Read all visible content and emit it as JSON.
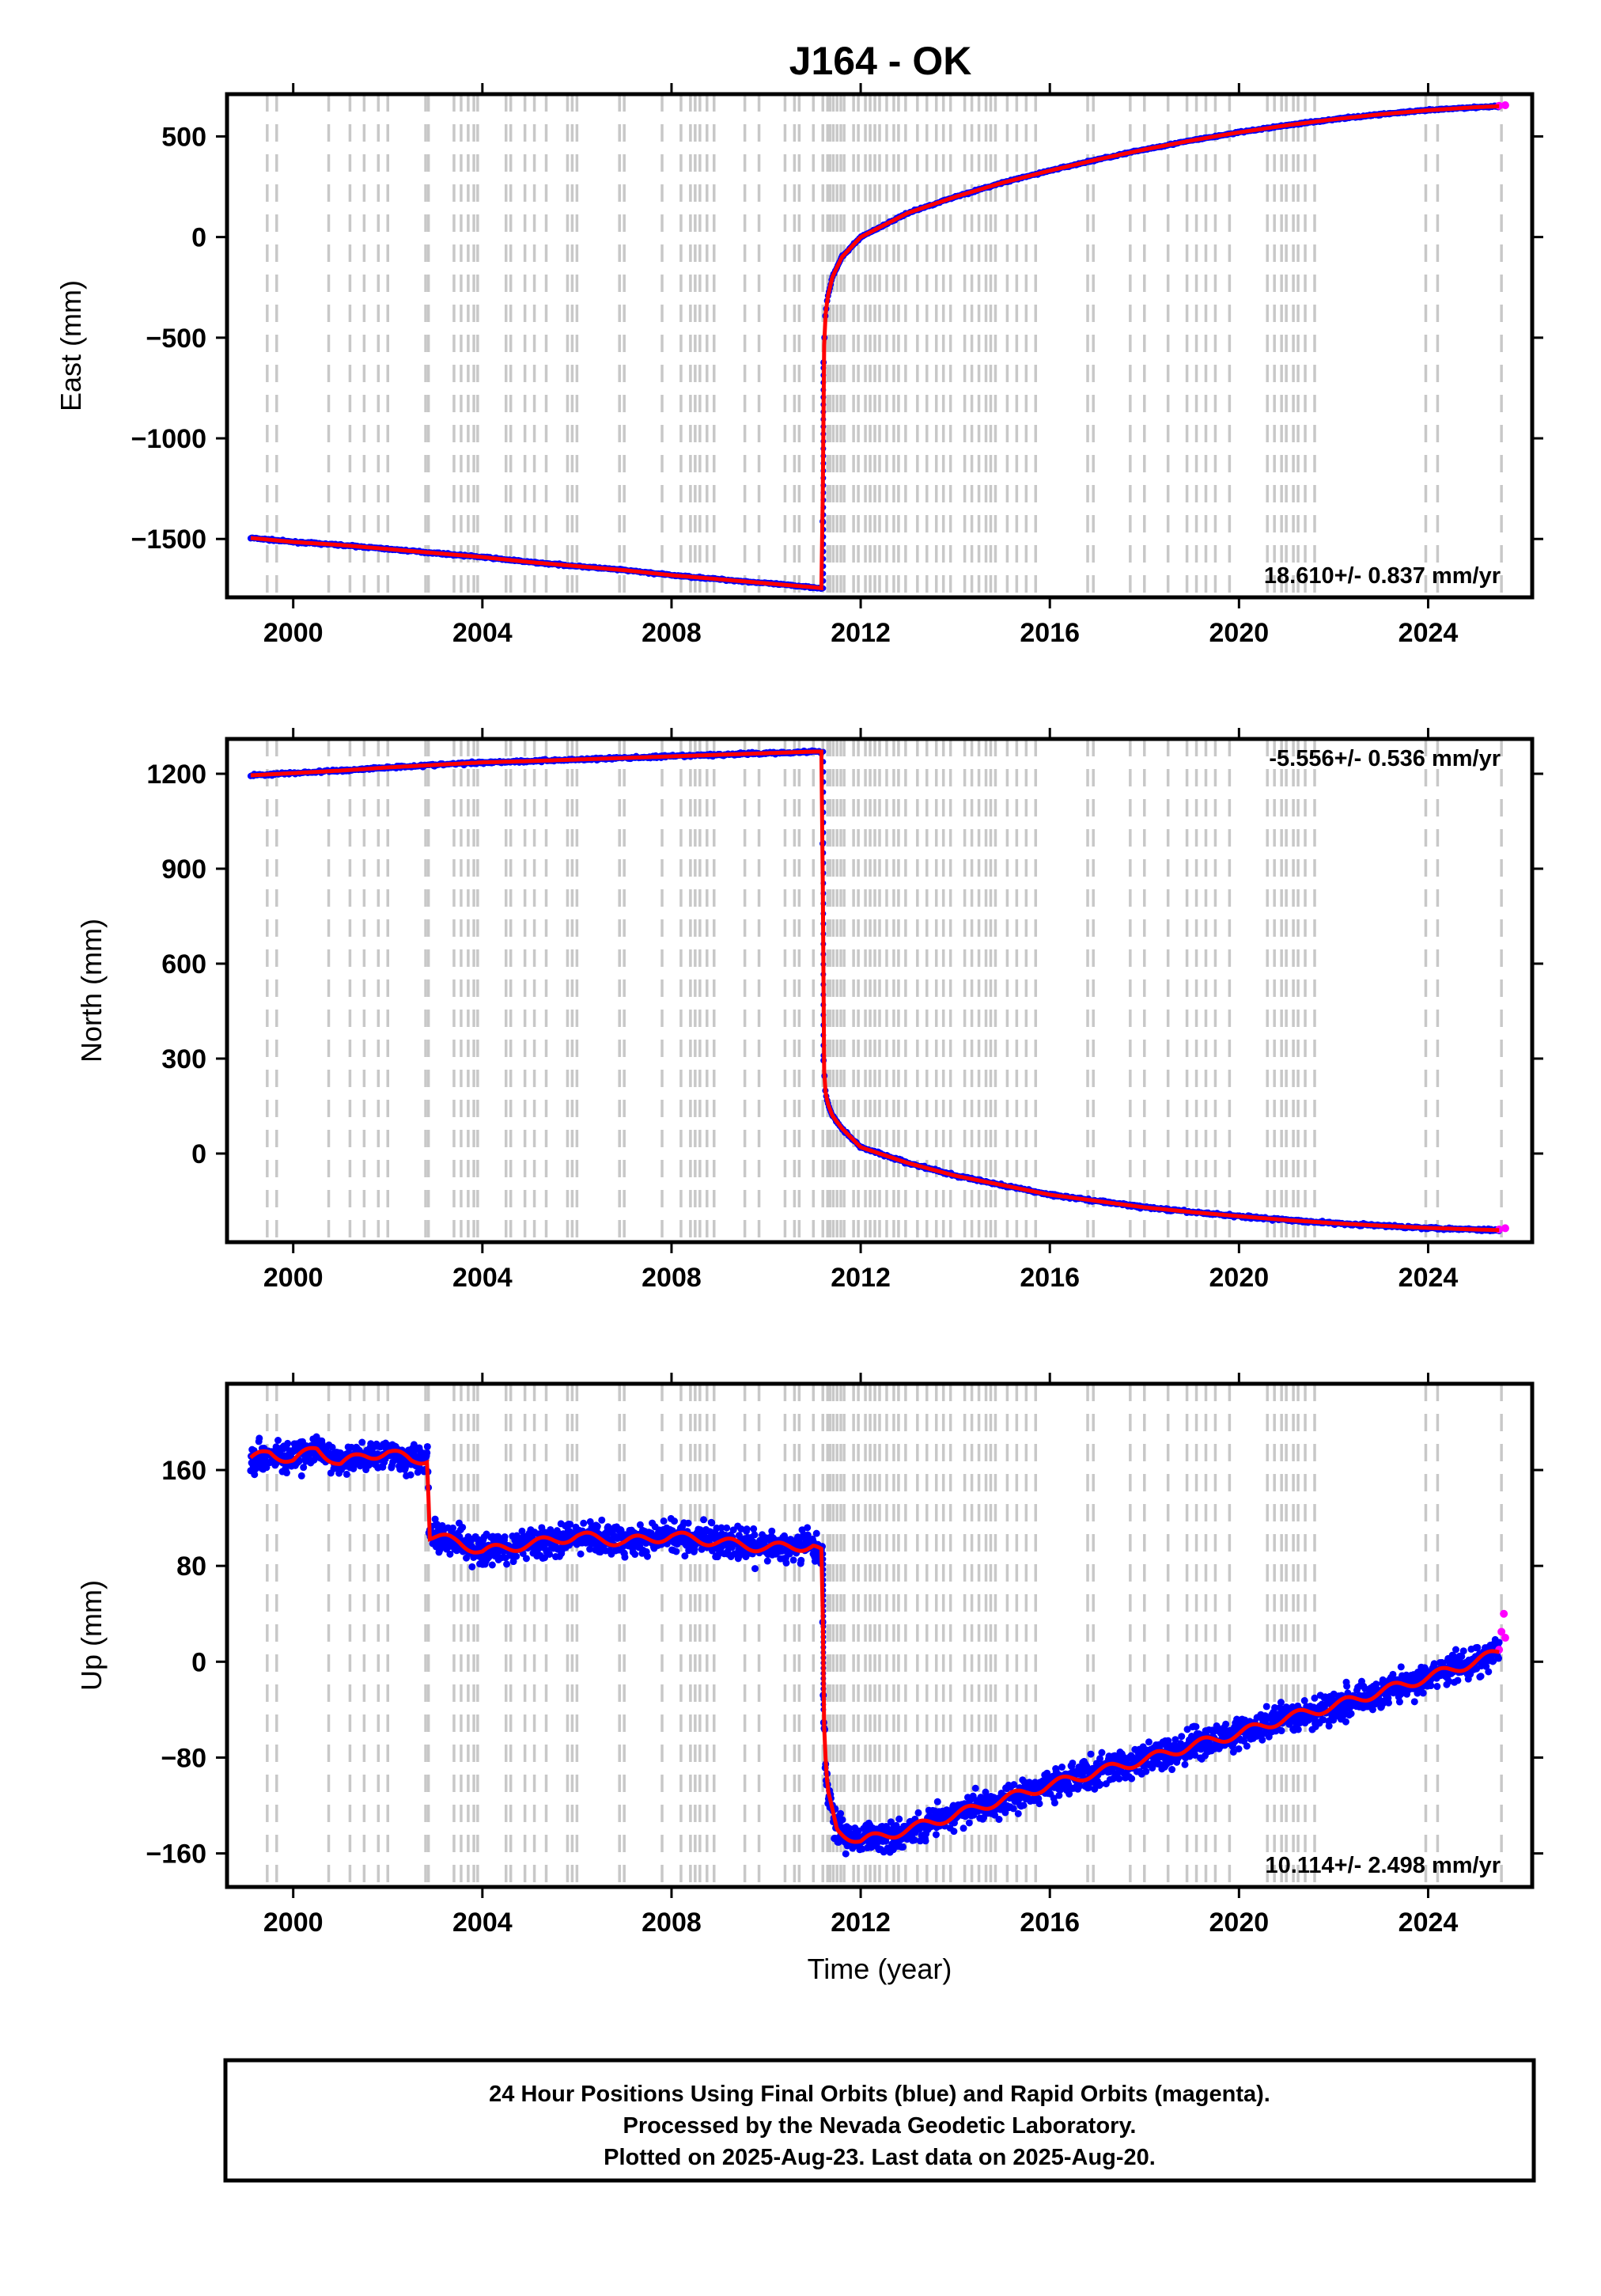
{
  "title": "J164 - OK",
  "colors": {
    "final_orbits": "#0000ff",
    "rapid_orbits": "#ff00ff",
    "model": "#ff0000",
    "steps": "#c8c8c8",
    "frame": "#000000"
  },
  "footer": {
    "line1": "24 Hour Positions Using Final Orbits (blue) and Rapid Orbits (magenta).",
    "line2": "Processed by the Nevada Geodetic Laboratory.",
    "line3": "Plotted on 2025-Aug-23. Last data on 2025-Aug-20."
  },
  "chart_data": [
    {
      "type": "scatter",
      "ylabel": "East (mm)",
      "xlabel": "",
      "xlim": [
        1998.6,
        2026.2
      ],
      "ylim": [
        -1790,
        710
      ],
      "xticks": [
        2000,
        2004,
        2008,
        2012,
        2016,
        2020,
        2024
      ],
      "yticks": [
        500,
        0,
        -500,
        -1000,
        -1500
      ],
      "ytick_labels": [
        "500",
        "0",
        "−500",
        "−1000",
        "−1500"
      ],
      "rate_label": "18.610+/- 0.837 mm/yr",
      "rate_position": "bottom-right",
      "grid": false,
      "series": [
        {
          "name": "Final Orbits (blue)",
          "x": [
            1999.1,
            2000.0,
            2001.0,
            2002.0,
            2003.0,
            2004.0,
            2005.0,
            2006.0,
            2007.0,
            2008.0,
            2009.0,
            2010.0,
            2011.0,
            2011.19,
            2011.21,
            2011.25,
            2011.3,
            2011.4,
            2011.6,
            2011.8,
            2012.0,
            2012.5,
            2013.0,
            2014.0,
            2015.0,
            2016.0,
            2017.0,
            2018.0,
            2019.0,
            2020.0,
            2021.0,
            2022.0,
            2023.0,
            2024.0,
            2025.0,
            2025.5
          ],
          "y": [
            -1495,
            -1515,
            -1530,
            -1550,
            -1570,
            -1590,
            -1615,
            -1635,
            -1655,
            -1680,
            -1700,
            -1720,
            -1740,
            -1745,
            -650,
            -400,
            -300,
            -200,
            -100,
            -50,
            0,
            60,
            120,
            200,
            270,
            330,
            385,
            435,
            480,
            520,
            555,
            585,
            610,
            630,
            645,
            650
          ]
        },
        {
          "name": "Rapid Orbits (magenta)",
          "x": [
            2025.5,
            2025.63
          ],
          "y": [
            652,
            655
          ]
        }
      ],
      "step_epochs": [
        1999.45,
        1999.65,
        2000.75,
        2001.2,
        2001.5,
        2001.8,
        2002.0,
        2002.8,
        2002.86,
        2003.4,
        2003.55,
        2003.7,
        2003.82,
        2003.9,
        2004.5,
        2004.6,
        2004.9,
        2005.1,
        2005.35,
        2005.8,
        2005.9,
        2006.0,
        2006.9,
        2007.0,
        2007.8,
        2008.2,
        2008.4,
        2008.5,
        2008.6,
        2008.75,
        2008.9,
        2009.55,
        2009.85,
        2010.4,
        2010.6,
        2010.7,
        2011.0,
        2011.2,
        2011.3,
        2011.35,
        2011.42,
        2011.5,
        2011.58,
        2011.65,
        2011.85,
        2011.95,
        2012.1,
        2012.2,
        2012.3,
        2012.4,
        2012.55,
        2012.7,
        2012.8,
        2012.95,
        2013.2,
        2013.4,
        2013.6,
        2013.75,
        2013.9,
        2014.2,
        2014.35,
        2014.5,
        2014.65,
        2014.75,
        2014.85,
        2015.1,
        2015.3,
        2015.5,
        2015.7,
        2016.8,
        2016.92,
        2017.7,
        2018.0,
        2018.5,
        2018.9,
        2019.1,
        2019.3,
        2019.5,
        2019.8,
        2020.6,
        2020.75,
        2020.9,
        2021.0,
        2021.15,
        2021.25,
        2021.4,
        2021.6,
        2023.95,
        2024.2,
        2025.55
      ]
    },
    {
      "type": "scatter",
      "ylabel": "North (mm)",
      "xlabel": "",
      "xlim": [
        1998.6,
        2026.2
      ],
      "ylim": [
        -280,
        1310
      ],
      "xticks": [
        2000,
        2004,
        2008,
        2012,
        2016,
        2020,
        2024
      ],
      "yticks": [
        1200,
        900,
        600,
        300,
        0
      ],
      "ytick_labels": [
        "1200",
        "900",
        "600",
        "300",
        "0"
      ],
      "rate_label": "-5.556+/- 0.536 mm/yr",
      "rate_position": "top-right",
      "grid": false,
      "series": [
        {
          "name": "Final Orbits (blue)",
          "x": [
            1999.1,
            2000.0,
            2001.0,
            2002.0,
            2003.0,
            2004.0,
            2005.0,
            2006.0,
            2007.0,
            2008.0,
            2009.0,
            2010.0,
            2011.0,
            2011.19,
            2011.21,
            2011.25,
            2011.3,
            2011.4,
            2011.6,
            2011.8,
            2012.0,
            2012.5,
            2013.0,
            2014.0,
            2015.0,
            2016.0,
            2017.0,
            2018.0,
            2019.0,
            2020.0,
            2021.0,
            2022.0,
            2023.0,
            2024.0,
            2025.0,
            2025.5
          ],
          "y": [
            1195,
            1202,
            1210,
            1220,
            1228,
            1236,
            1240,
            1245,
            1250,
            1255,
            1260,
            1265,
            1270,
            1270,
            310,
            200,
            160,
            120,
            80,
            50,
            20,
            -5,
            -30,
            -70,
            -100,
            -130,
            -150,
            -170,
            -185,
            -198,
            -210,
            -220,
            -228,
            -235,
            -240,
            -242
          ]
        },
        {
          "name": "Rapid Orbits (magenta)",
          "x": [
            2025.5,
            2025.63
          ],
          "y": [
            -240,
            -236
          ]
        }
      ],
      "step_epochs": [
        1999.45,
        1999.65,
        2000.75,
        2001.2,
        2001.5,
        2001.8,
        2002.0,
        2002.8,
        2002.86,
        2003.4,
        2003.55,
        2003.7,
        2003.82,
        2003.9,
        2004.5,
        2004.6,
        2004.9,
        2005.1,
        2005.35,
        2005.8,
        2005.9,
        2006.0,
        2006.9,
        2007.0,
        2007.8,
        2008.2,
        2008.4,
        2008.5,
        2008.6,
        2008.75,
        2008.9,
        2009.55,
        2009.85,
        2010.4,
        2010.6,
        2010.7,
        2011.0,
        2011.2,
        2011.3,
        2011.35,
        2011.42,
        2011.5,
        2011.58,
        2011.65,
        2011.85,
        2011.95,
        2012.1,
        2012.2,
        2012.3,
        2012.4,
        2012.55,
        2012.7,
        2012.8,
        2012.95,
        2013.2,
        2013.4,
        2013.6,
        2013.75,
        2013.9,
        2014.2,
        2014.35,
        2014.5,
        2014.65,
        2014.75,
        2014.85,
        2015.1,
        2015.3,
        2015.5,
        2015.7,
        2016.8,
        2016.92,
        2017.7,
        2018.0,
        2018.5,
        2018.9,
        2019.1,
        2019.3,
        2019.5,
        2019.8,
        2020.6,
        2020.75,
        2020.9,
        2021.0,
        2021.15,
        2021.25,
        2021.4,
        2021.6,
        2023.95,
        2024.2,
        2025.55
      ]
    },
    {
      "type": "scatter",
      "ylabel": "Up (mm)",
      "xlabel": "Time (year)",
      "xlim": [
        1998.6,
        2026.2
      ],
      "ylim": [
        -188,
        232
      ],
      "xticks": [
        2000,
        2004,
        2008,
        2012,
        2016,
        2020,
        2024
      ],
      "yticks": [
        160,
        80,
        0,
        -80,
        -160
      ],
      "ytick_labels": [
        "160",
        "80",
        "0",
        "−80",
        "−160"
      ],
      "rate_label": "10.114+/- 2.498 mm/yr",
      "rate_position": "bottom-right",
      "grid": false,
      "series": [
        {
          "name": "Final Orbits (blue)",
          "x": [
            1999.1,
            1999.5,
            2000.0,
            2000.5,
            2001.0,
            2001.5,
            2002.0,
            2002.5,
            2002.85,
            2002.87,
            2003.5,
            2004.0,
            2005.0,
            2006.0,
            2007.0,
            2008.0,
            2009.0,
            2010.0,
            2011.0,
            2011.19,
            2011.21,
            2011.25,
            2011.3,
            2011.5,
            2012.0,
            2012.5,
            2013.0,
            2014.0,
            2015.0,
            2016.0,
            2017.0,
            2018.0,
            2019.0,
            2020.0,
            2021.0,
            2022.0,
            2023.0,
            2024.0,
            2025.0,
            2025.5
          ],
          "y": [
            168,
            175,
            168,
            178,
            165,
            172,
            175,
            168,
            170,
            105,
            100,
            92,
            98,
            105,
            100,
            105,
            100,
            95,
            97,
            90,
            -40,
            -80,
            -110,
            -140,
            -150,
            -145,
            -140,
            -128,
            -115,
            -103,
            -92,
            -82,
            -70,
            -60,
            -47,
            -37,
            -25,
            -13,
            0,
            8
          ]
        },
        {
          "name": "Rapid Orbits (magenta)",
          "x": [
            2025.5,
            2025.55,
            2025.6,
            2025.63
          ],
          "y": [
            10,
            25,
            40,
            20
          ]
        }
      ],
      "step_epochs": [
        1999.45,
        1999.65,
        2000.75,
        2001.2,
        2001.5,
        2001.8,
        2002.0,
        2002.8,
        2002.86,
        2003.4,
        2003.55,
        2003.7,
        2003.82,
        2003.9,
        2004.5,
        2004.6,
        2004.9,
        2005.1,
        2005.35,
        2005.8,
        2005.9,
        2006.0,
        2006.9,
        2007.0,
        2007.8,
        2008.2,
        2008.4,
        2008.5,
        2008.6,
        2008.75,
        2008.9,
        2009.55,
        2009.85,
        2010.4,
        2010.6,
        2010.7,
        2011.0,
        2011.2,
        2011.3,
        2011.35,
        2011.42,
        2011.5,
        2011.58,
        2011.65,
        2011.85,
        2011.95,
        2012.1,
        2012.2,
        2012.3,
        2012.4,
        2012.55,
        2012.7,
        2012.8,
        2012.95,
        2013.2,
        2013.4,
        2013.6,
        2013.75,
        2013.9,
        2014.2,
        2014.35,
        2014.5,
        2014.65,
        2014.75,
        2014.85,
        2015.1,
        2015.3,
        2015.5,
        2015.7,
        2016.8,
        2016.92,
        2017.7,
        2018.0,
        2018.5,
        2018.9,
        2019.1,
        2019.3,
        2019.5,
        2019.8,
        2020.6,
        2020.75,
        2020.9,
        2021.0,
        2021.15,
        2021.25,
        2021.4,
        2021.6,
        2023.95,
        2024.2,
        2025.55
      ]
    }
  ]
}
